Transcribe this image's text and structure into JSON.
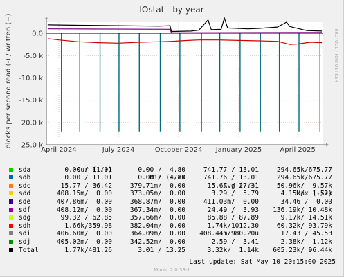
{
  "chart_data": {
    "type": "line",
    "title": "IOstat - by year",
    "ylabel": "blocks per second read (-) / written (+)",
    "side_text": "RRDTOOL / TOBI OETIKER",
    "ylim": [
      -25000,
      2500
    ],
    "y_ticks": [
      {
        "value": 0,
        "label": "0.0"
      },
      {
        "value": -5000,
        "label": "-5.0 k"
      },
      {
        "value": -10000,
        "label": "-10.0 k"
      },
      {
        "value": -15000,
        "label": "-15.0 k"
      },
      {
        "value": -20000,
        "label": "-20.0 k"
      },
      {
        "value": -25000,
        "label": "-25.0 k"
      }
    ],
    "x_range": [
      "2024-03-13",
      "2025-05-10"
    ],
    "x_ticks": [
      {
        "date": "2024-04-01",
        "label": "April 2024"
      },
      {
        "date": "2024-07-01",
        "label": "July 2024"
      },
      {
        "date": "2024-10-01",
        "label": "October 2024"
      },
      {
        "date": "2025-01-01",
        "label": "January 2025"
      },
      {
        "date": "2025-04-01",
        "label": "April 2025"
      }
    ],
    "series": [
      {
        "name": "Total written (+)",
        "color": "#000000",
        "points": [
          [
            "2024-03-15",
            1900
          ],
          [
            "2024-05-01",
            1800
          ],
          [
            "2024-07-01",
            1700
          ],
          [
            "2024-09-01",
            1600
          ],
          [
            "2024-09-18",
            1700
          ],
          [
            "2024-09-20",
            400
          ],
          [
            "2024-10-20",
            500
          ],
          [
            "2024-11-01",
            700
          ],
          [
            "2024-11-15",
            3000
          ],
          [
            "2024-11-20",
            800
          ],
          [
            "2024-12-05",
            900
          ],
          [
            "2024-12-10",
            3400
          ],
          [
            "2024-12-15",
            1200
          ],
          [
            "2025-01-15",
            1000
          ],
          [
            "2025-02-01",
            1100
          ],
          [
            "2025-03-01",
            1400
          ],
          [
            "2025-03-15",
            2500
          ],
          [
            "2025-03-20",
            1500
          ],
          [
            "2025-04-15",
            600
          ],
          [
            "2025-05-08",
            500
          ]
        ]
      },
      {
        "name": "Total read (-)",
        "color": "#cc0000",
        "points": [
          [
            "2024-03-15",
            -1200
          ],
          [
            "2024-04-01",
            -1500
          ],
          [
            "2024-05-01",
            -1900
          ],
          [
            "2024-06-01",
            -2100
          ],
          [
            "2024-07-01",
            -2200
          ],
          [
            "2024-08-01",
            -2000
          ],
          [
            "2024-09-01",
            -1900
          ],
          [
            "2024-09-20",
            -1800
          ],
          [
            "2024-10-15",
            -1600
          ],
          [
            "2024-11-01",
            -1500
          ],
          [
            "2024-12-01",
            -1500
          ],
          [
            "2025-01-01",
            -1600
          ],
          [
            "2025-02-01",
            -1700
          ],
          [
            "2025-03-01",
            -1800
          ],
          [
            "2025-03-20",
            -2500
          ],
          [
            "2025-04-01",
            -2400
          ],
          [
            "2025-04-20",
            -2000
          ],
          [
            "2025-05-08",
            -2100
          ]
        ]
      },
      {
        "name": "sdi written (+)",
        "color": "#7a0177",
        "points": [
          [
            "2024-03-15",
            1000
          ],
          [
            "2024-09-18",
            900
          ],
          [
            "2024-09-20",
            100
          ],
          [
            "2025-05-08",
            200
          ]
        ]
      }
    ],
    "spikes": {
      "color": "#006d7a",
      "min_value": -22000,
      "dates": [
        "2024-04-05",
        "2024-05-03",
        "2024-06-03",
        "2024-07-02",
        "2024-08-02",
        "2024-09-03",
        "2024-10-03",
        "2024-11-05",
        "2024-12-03",
        "2025-01-03",
        "2025-02-03",
        "2025-03-04",
        "2025-04-03",
        "2025-05-05"
      ]
    }
  },
  "legend": {
    "headers": {
      "cur": "Cur (-/+)",
      "min": "Min (-/+)",
      "avg": "Avg (-/+)",
      "max": "Max (-/+)"
    },
    "rows": [
      {
        "name": "sda",
        "color": "#00cc00",
        "cur": "0.00 / 11.01",
        "min": "0.00 /  4.80",
        "avg": "741.77 / 13.01",
        "max": "294.65k/675.77"
      },
      {
        "name": "sdb",
        "color": "#0066b3",
        "cur": "0.00 / 11.01",
        "min": "0.00 /  4.80",
        "avg": "741.76 / 13.01",
        "max": "294.65k/675.77"
      },
      {
        "name": "sdc",
        "color": "#ff8000",
        "cur": "15.77 / 36.42",
        "min": "379.71m/  0.00",
        "avg": "15.67 / 27.31",
        "max": "50.96k/  9.57k"
      },
      {
        "name": "sdd",
        "color": "#ffcc00",
        "cur": "408.15m/  0.00",
        "min": "373.05m/  0.00",
        "avg": "3.29 /  5.79",
        "max": "4.15k/  1.52k"
      },
      {
        "name": "sde",
        "color": "#330099",
        "cur": "407.86m/  0.00",
        "min": "368.87m/  0.00",
        "avg": "411.03m/  0.00",
        "max": "34.46 /  0.00"
      },
      {
        "name": "sdf",
        "color": "#990099",
        "cur": "408.12m/  0.00",
        "min": "367.34m/  0.00",
        "avg": "24.49 /  3.93",
        "max": "136.19k/ 10.48k"
      },
      {
        "name": "sdg",
        "color": "#ccff00",
        "cur": "99.32 / 62.85",
        "min": "357.66m/  0.00",
        "avg": "85.88 / 87.89",
        "max": "9.17k/ 14.51k"
      },
      {
        "name": "sdh",
        "color": "#ff0000",
        "cur": "1.66k/359.98",
        "min": "382.04m/  0.00",
        "avg": "1.74k/1012.30",
        "max": "60.32k/ 93.79k"
      },
      {
        "name": "sdi",
        "color": "#808080",
        "cur": "406.60m/  0.00",
        "min": "364.09m/  0.00",
        "avg": "408.44m/980.20u",
        "max": "17.43 / 45.53"
      },
      {
        "name": "sdj",
        "color": "#008f00",
        "cur": "405.02m/  0.00",
        "min": "342.52m/  0.00",
        "avg": "2.59 /  3.41",
        "max": "2.38k/  1.12k"
      },
      {
        "name": "Total",
        "color": "#000000",
        "cur": "1.77k/481.26",
        "min": "3.01 / 13.25",
        "avg": "3.32k/  1.14k",
        "max": "605.23k/ 96.44k"
      }
    ]
  },
  "last_update": "Last update:  Sat May 10 20:15:00 2025",
  "munin_version": "Munin 2.0.33-1"
}
